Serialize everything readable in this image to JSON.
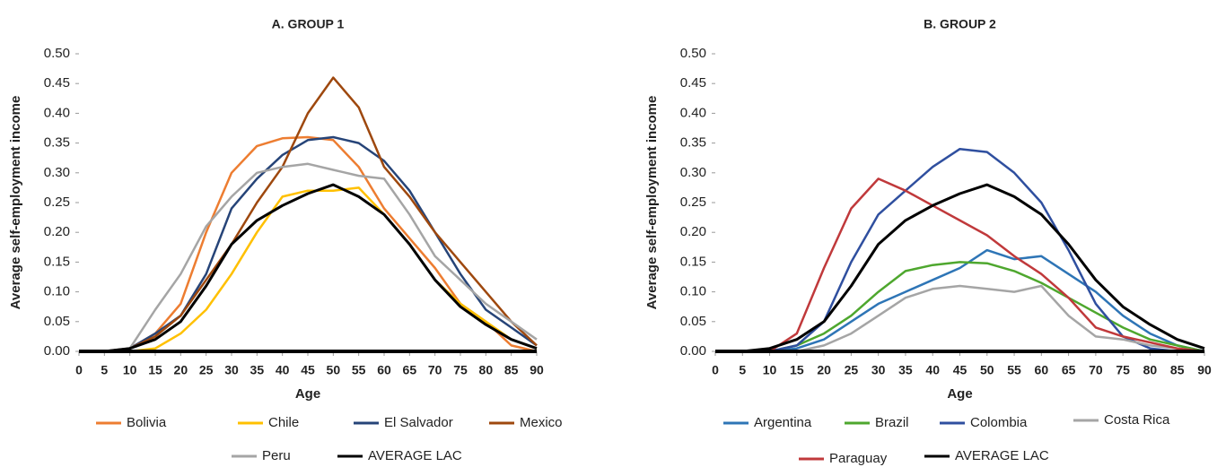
{
  "chart_data": [
    {
      "type": "line",
      "title": "A. GROUP 1",
      "x_label": "Age",
      "y_label": "Average self-employment income",
      "x": [
        0,
        5,
        10,
        15,
        20,
        25,
        30,
        35,
        40,
        45,
        50,
        55,
        60,
        65,
        70,
        75,
        80,
        85,
        90
      ],
      "xlim": [
        0,
        90
      ],
      "xticks": [
        0,
        5,
        10,
        15,
        20,
        25,
        30,
        35,
        40,
        45,
        50,
        55,
        60,
        65,
        70,
        75,
        80,
        85,
        90
      ],
      "ylim": [
        0,
        0.5
      ],
      "yticks": [
        {
          "value": 0,
          "label": "0.00"
        },
        {
          "value": 0.05,
          "label": "0.05"
        },
        {
          "value": 0.1,
          "label": "0.10"
        },
        {
          "value": 0.15,
          "label": "0.15"
        },
        {
          "value": 0.2,
          "label": "0.20"
        },
        {
          "value": 0.25,
          "label": "0.25"
        },
        {
          "value": 0.3,
          "label": "0.30"
        },
        {
          "value": 0.35,
          "label": "0.35"
        },
        {
          "value": 0.4,
          "label": "0.40"
        },
        {
          "value": 0.45,
          "label": "0.45"
        },
        {
          "value": 0.5,
          "label": "0.50"
        }
      ],
      "series": [
        {
          "name": "Bolivia",
          "color": "#ed7d31",
          "values": [
            0,
            0,
            0.005,
            0.03,
            0.08,
            0.2,
            0.3,
            0.345,
            0.358,
            0.36,
            0.355,
            0.31,
            0.24,
            0.19,
            0.14,
            0.08,
            0.05,
            0.01,
            0
          ]
        },
        {
          "name": "Chile",
          "color": "#ffc000",
          "values": [
            0,
            0,
            0,
            0.005,
            0.03,
            0.07,
            0.13,
            0.2,
            0.26,
            0.27,
            0.27,
            0.275,
            0.23,
            0.18,
            0.12,
            0.08,
            0.05,
            0.02,
            0.005
          ]
        },
        {
          "name": "El Salvador",
          "color": "#264478",
          "values": [
            0,
            0,
            0.005,
            0.03,
            0.06,
            0.13,
            0.24,
            0.29,
            0.33,
            0.355,
            0.36,
            0.35,
            0.32,
            0.27,
            0.2,
            0.13,
            0.07,
            0.04,
            0.01
          ]
        },
        {
          "name": "Mexico",
          "color": "#9e480e",
          "values": [
            0,
            0,
            0.005,
            0.025,
            0.06,
            0.12,
            0.18,
            0.25,
            0.31,
            0.4,
            0.46,
            0.41,
            0.31,
            0.26,
            0.2,
            0.15,
            0.1,
            0.05,
            0.01
          ]
        },
        {
          "name": "Peru",
          "color": "#a5a5a5",
          "values": [
            0,
            0,
            0.005,
            0.07,
            0.13,
            0.21,
            0.26,
            0.3,
            0.31,
            0.315,
            0.305,
            0.295,
            0.29,
            0.23,
            0.16,
            0.12,
            0.08,
            0.05,
            0.02
          ]
        },
        {
          "name": "AVERAGE LAC",
          "color": "#000000",
          "values": [
            0,
            0,
            0.005,
            0.02,
            0.05,
            0.11,
            0.18,
            0.22,
            0.245,
            0.265,
            0.28,
            0.26,
            0.23,
            0.18,
            0.12,
            0.075,
            0.045,
            0.02,
            0.005
          ]
        }
      ]
    },
    {
      "type": "line",
      "title": "B. GROUP 2",
      "x_label": "Age",
      "y_label": "Average self-employment income",
      "x": [
        0,
        5,
        10,
        15,
        20,
        25,
        30,
        35,
        40,
        45,
        50,
        55,
        60,
        65,
        70,
        75,
        80,
        85,
        90
      ],
      "xlim": [
        0,
        90
      ],
      "xticks": [
        0,
        5,
        10,
        15,
        20,
        25,
        30,
        35,
        40,
        45,
        50,
        55,
        60,
        65,
        70,
        75,
        80,
        85,
        90
      ],
      "ylim": [
        0,
        0.5
      ],
      "yticks": [
        {
          "value": 0,
          "label": "0.00"
        },
        {
          "value": 0.05,
          "label": "0.05"
        },
        {
          "value": 0.1,
          "label": "0.10"
        },
        {
          "value": 0.15,
          "label": "0.15"
        },
        {
          "value": 0.2,
          "label": "0.20"
        },
        {
          "value": 0.25,
          "label": "0.25"
        },
        {
          "value": 0.3,
          "label": "0.30"
        },
        {
          "value": 0.35,
          "label": "0.35"
        },
        {
          "value": 0.4,
          "label": "0.40"
        },
        {
          "value": 0.45,
          "label": "0.45"
        },
        {
          "value": 0.5,
          "label": "0.50"
        }
      ],
      "series": [
        {
          "name": "Argentina",
          "color": "#2e75b6",
          "values": [
            0,
            0,
            0,
            0.005,
            0.02,
            0.05,
            0.08,
            0.1,
            0.12,
            0.14,
            0.17,
            0.155,
            0.16,
            0.13,
            0.1,
            0.06,
            0.03,
            0.01,
            0
          ]
        },
        {
          "name": "Brazil",
          "color": "#4ea72e",
          "values": [
            0,
            0,
            0,
            0.01,
            0.03,
            0.06,
            0.1,
            0.135,
            0.145,
            0.15,
            0.148,
            0.135,
            0.115,
            0.09,
            0.065,
            0.04,
            0.02,
            0.01,
            0
          ]
        },
        {
          "name": "Colombia",
          "color": "#2f4f9f",
          "values": [
            0,
            0,
            0,
            0.01,
            0.05,
            0.15,
            0.23,
            0.27,
            0.31,
            0.34,
            0.335,
            0.3,
            0.25,
            0.17,
            0.08,
            0.025,
            0.005,
            0,
            0
          ]
        },
        {
          "name": "Costa Rica",
          "color": "#a5a5a5",
          "values": [
            0,
            0,
            0,
            0,
            0.01,
            0.03,
            0.06,
            0.09,
            0.105,
            0.11,
            0.105,
            0.1,
            0.11,
            0.06,
            0.025,
            0.02,
            0.01,
            0.005,
            0
          ]
        },
        {
          "name": "Paraguay",
          "color": "#c0393b",
          "values": [
            0,
            0,
            0,
            0.03,
            0.14,
            0.24,
            0.29,
            0.27,
            0.245,
            0.22,
            0.195,
            0.16,
            0.13,
            0.09,
            0.04,
            0.025,
            0.015,
            0.005,
            0
          ]
        },
        {
          "name": "AVERAGE LAC",
          "color": "#000000",
          "values": [
            0,
            0,
            0.005,
            0.02,
            0.05,
            0.11,
            0.18,
            0.22,
            0.245,
            0.265,
            0.28,
            0.26,
            0.23,
            0.18,
            0.12,
            0.075,
            0.045,
            0.02,
            0.005
          ]
        }
      ]
    }
  ]
}
